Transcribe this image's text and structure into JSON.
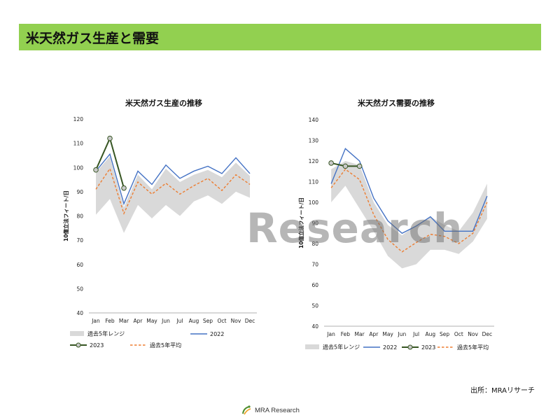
{
  "page": {
    "title": "米天然ガス生産と需要",
    "watermark": "Research",
    "source": "出所：MRAリサーチ",
    "footer_brand": "MRA Research"
  },
  "chart_data": [
    {
      "type": "line",
      "title": "米天然ガス生産の推移",
      "ylabel": "10億立法フィート/日",
      "xlabel": "",
      "ylim": [
        40,
        120
      ],
      "yticks": [
        40,
        50,
        60,
        70,
        80,
        90,
        100,
        110,
        120
      ],
      "categories": [
        "Jan",
        "Feb",
        "Mar",
        "Apr",
        "May",
        "Jun",
        "Jul",
        "Aug",
        "Sep",
        "Oct",
        "Nov",
        "Dec"
      ],
      "range": {
        "name": "過去5年レンジ",
        "low": [
          80.5,
          87,
          73,
          84.5,
          79,
          84.5,
          80,
          86,
          88.5,
          85,
          90,
          87.5
        ],
        "high": [
          98,
          104.5,
          83.5,
          97,
          91,
          99.5,
          94,
          97,
          99,
          96,
          102,
          96.5
        ]
      },
      "series": [
        {
          "name": "2022",
          "style": "solid",
          "color": "#4472c4",
          "values": [
            98.5,
            105.5,
            85,
            98.5,
            93,
            101,
            95.5,
            98.5,
            100.5,
            97.5,
            104,
            97.5
          ]
        },
        {
          "name": "2023",
          "style": "marker",
          "color": "#375623",
          "values": [
            99,
            112,
            91.5,
            null,
            null,
            null,
            null,
            null,
            null,
            null,
            null,
            null
          ]
        },
        {
          "name": "過去5年平均",
          "style": "dashed",
          "color": "#ed7d31",
          "values": [
            91,
            99.5,
            81,
            94,
            89,
            93.5,
            89,
            92.5,
            95.5,
            90.5,
            97,
            93
          ]
        }
      ],
      "legend_position": "bottom"
    },
    {
      "type": "line",
      "title": "米天然ガス需要の推移",
      "ylabel": "10億立法フィート/日",
      "xlabel": "",
      "ylim": [
        40,
        140
      ],
      "yticks": [
        40,
        50,
        60,
        70,
        80,
        90,
        100,
        110,
        120,
        130,
        140
      ],
      "categories": [
        "Jan",
        "Feb",
        "Mar",
        "Apr",
        "May",
        "Jun",
        "Jul",
        "Aug",
        "Sep",
        "Oct",
        "Nov",
        "Dec"
      ],
      "range": {
        "name": "過去5年レンジ",
        "low": [
          100,
          108,
          97,
          86,
          74,
          68,
          70,
          77,
          77,
          75,
          81,
          92
        ],
        "high": [
          116,
          120,
          118,
          100,
          89,
          84,
          89,
          93,
          89,
          86,
          95,
          109
        ]
      },
      "series": [
        {
          "name": "2022",
          "style": "solid",
          "color": "#4472c4",
          "values": [
            109,
            126,
            120,
            102,
            91,
            85,
            88.5,
            93,
            86,
            86,
            86,
            103
          ]
        },
        {
          "name": "2023",
          "style": "marker",
          "color": "#375623",
          "values": [
            119,
            117.5,
            117.5,
            null,
            null,
            null,
            null,
            null,
            null,
            null,
            null,
            null
          ]
        },
        {
          "name": "過去5年平均",
          "style": "dashed",
          "color": "#ed7d31",
          "values": [
            107,
            116,
            111,
            94,
            82,
            76,
            80.5,
            84.5,
            83.5,
            80,
            85,
            100
          ]
        }
      ],
      "legend_position": "bottom"
    }
  ]
}
